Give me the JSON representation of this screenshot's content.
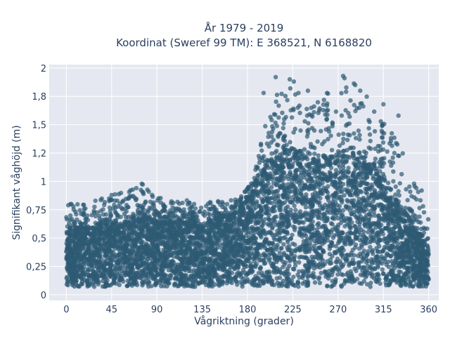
{
  "chart_data": {
    "type": "scatter",
    "title_line1": "År 1979 - 2019",
    "title_line2": "Koordinat (Sweref 99 TM): E 368521, N 6168820",
    "xlabel": "Vågriktning (grader)",
    "ylabel": "Signifikant våghöjd (m)",
    "xlim": [
      -17,
      370
    ],
    "ylim": [
      -0.05,
      2.03
    ],
    "xticks": [
      0,
      45,
      90,
      135,
      180,
      225,
      270,
      315,
      360
    ],
    "xtick_labels": [
      "0",
      "45",
      "90",
      "135",
      "180",
      "225",
      "270",
      "315",
      "360"
    ],
    "yticks": [
      0,
      0.25,
      0.5,
      0.75,
      1,
      1.25,
      1.5,
      1.75,
      2
    ],
    "ytick_labels": [
      "0",
      "0,25",
      "0,5",
      "0,75",
      "1",
      "1,2",
      "1,5",
      "1,8",
      "2"
    ],
    "marker_color": "#2e5a73",
    "plot_bg": "#e5e8f0",
    "grid": true,
    "legend": "none",
    "envelope": {
      "description_points_x": [
        0,
        20,
        45,
        75,
        90,
        135,
        170,
        185,
        200,
        215,
        225,
        240,
        260,
        275,
        290,
        305,
        320,
        335,
        345,
        355,
        360
      ],
      "dense_upper_y": [
        0.55,
        0.6,
        0.62,
        0.68,
        0.65,
        0.62,
        0.72,
        0.9,
        1.15,
        1.25,
        1.25,
        1.15,
        1.2,
        1.22,
        1.2,
        1.1,
        0.95,
        0.75,
        0.6,
        0.5,
        0.4
      ],
      "outlier_upper_y": [
        0.8,
        0.82,
        0.88,
        0.98,
        0.87,
        0.82,
        0.85,
        1.0,
        1.6,
        1.9,
        1.88,
        1.75,
        1.8,
        1.93,
        1.85,
        1.7,
        1.5,
        1.3,
        1.0,
        0.9,
        0.65
      ],
      "lower_y": 0.07
    },
    "representative_points": [
      {
        "x": 208,
        "y": 1.92
      },
      {
        "x": 222,
        "y": 1.9
      },
      {
        "x": 226,
        "y": 1.88
      },
      {
        "x": 275,
        "y": 1.93
      },
      {
        "x": 287,
        "y": 1.85
      },
      {
        "x": 292,
        "y": 1.8
      },
      {
        "x": 240,
        "y": 1.8
      },
      {
        "x": 196,
        "y": 1.78
      },
      {
        "x": 230,
        "y": 1.65
      },
      {
        "x": 315,
        "y": 1.68
      },
      {
        "x": 330,
        "y": 1.58
      },
      {
        "x": 75,
        "y": 0.98
      },
      {
        "x": 45,
        "y": 0.88
      },
      {
        "x": 5,
        "y": 0.8
      },
      {
        "x": 353,
        "y": 0.92
      }
    ]
  }
}
